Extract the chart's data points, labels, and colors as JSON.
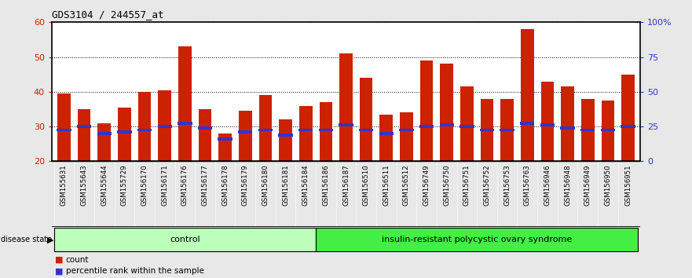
{
  "title": "GDS3104 / 244557_at",
  "samples": [
    "GSM155631",
    "GSM155643",
    "GSM155644",
    "GSM155729",
    "GSM156170",
    "GSM156171",
    "GSM156176",
    "GSM156177",
    "GSM156178",
    "GSM156179",
    "GSM156180",
    "GSM156181",
    "GSM156184",
    "GSM156186",
    "GSM156187",
    "GSM156510",
    "GSM156511",
    "GSM156512",
    "GSM156749",
    "GSM156750",
    "GSM156751",
    "GSM156752",
    "GSM156753",
    "GSM156763",
    "GSM156946",
    "GSM156948",
    "GSM156949",
    "GSM156950",
    "GSM156951"
  ],
  "counts": [
    39.5,
    35,
    31,
    35.5,
    40,
    40.5,
    53,
    35,
    28,
    34.5,
    39,
    32,
    36,
    37,
    51,
    44,
    33.5,
    34,
    49,
    48,
    41.5,
    38,
    38,
    58,
    43,
    41.5,
    38,
    37.5,
    45
  ],
  "percentiles": [
    29,
    30,
    28,
    28.5,
    29,
    30,
    31,
    29.5,
    26.5,
    28.5,
    29,
    27.5,
    29,
    29,
    30.5,
    29,
    28,
    29,
    30,
    30.5,
    30,
    29,
    29,
    31,
    30.5,
    29.5,
    29,
    29,
    30
  ],
  "ctrl_count": 13,
  "group_labels": [
    "control",
    "insulin-resistant polycystic ovary syndrome"
  ],
  "left_ylim": [
    20,
    60
  ],
  "right_ylim": [
    0,
    100
  ],
  "left_yticks": [
    20,
    30,
    40,
    50,
    60
  ],
  "right_yticks": [
    0,
    25,
    50,
    75,
    100
  ],
  "right_yticklabels": [
    "0",
    "25",
    "50",
    "75",
    "100%"
  ],
  "bar_color": "#CC2200",
  "percentile_color": "#3333CC",
  "bg_color": "#E8E8E8",
  "plot_bg": "#FFFFFF",
  "label_color_left": "#CC2200",
  "label_color_right": "#3333CC",
  "xtick_bg": "#D0D0D0",
  "group0_color": "#BBFFBB",
  "group1_color": "#44EE44",
  "bar_width": 0.65
}
